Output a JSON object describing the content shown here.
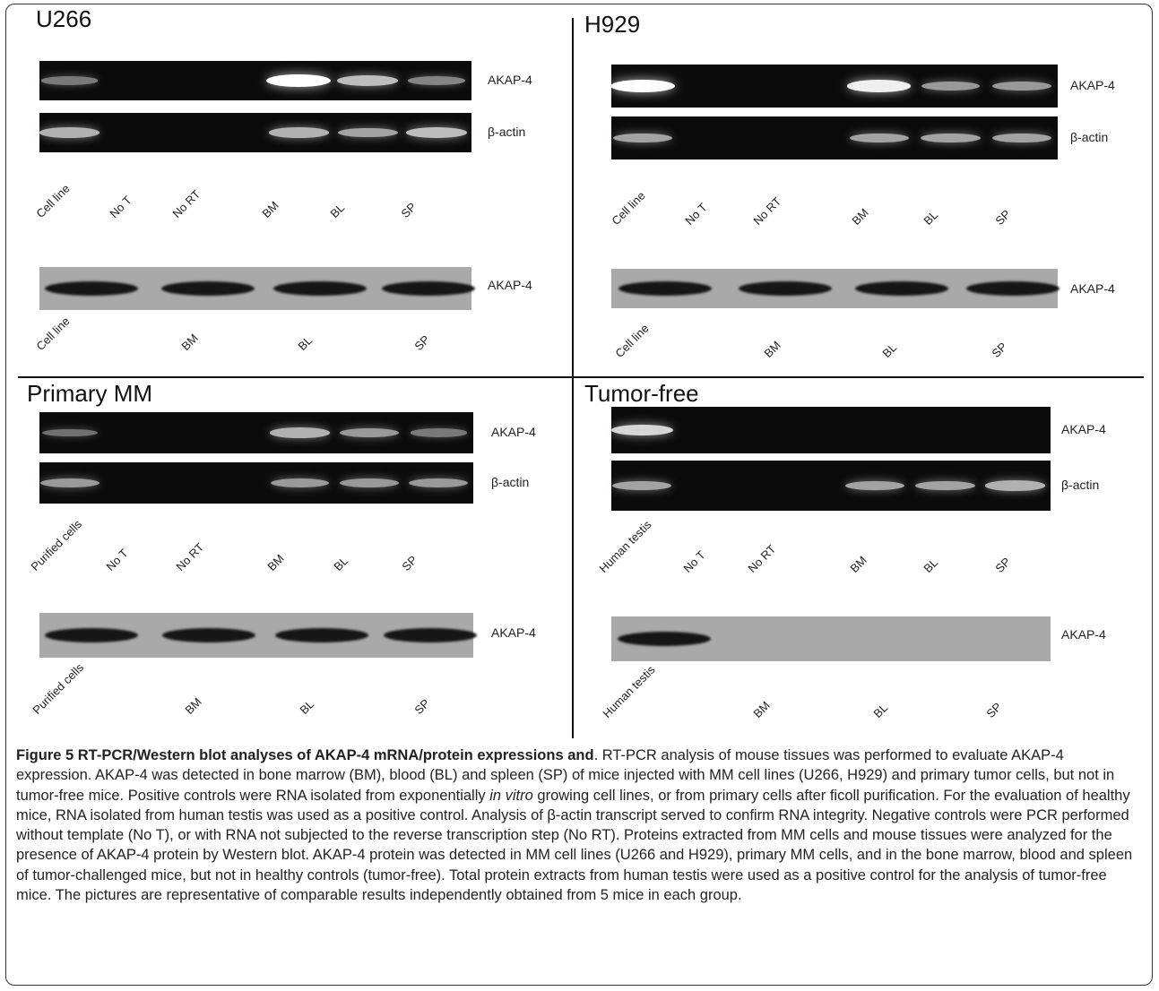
{
  "panels": [
    {
      "title": "U266",
      "gels": [
        {
          "label": "AKAP-4",
          "bands": [
            0.45,
            0,
            0,
            1.0,
            0.75,
            0.5
          ]
        },
        {
          "label": "β-actin",
          "bands": [
            0.7,
            0,
            0,
            0.7,
            0.65,
            0.75
          ]
        }
      ],
      "lanes": [
        "Cell line",
        "No T",
        "No RT",
        "BM",
        "BL",
        "SP"
      ],
      "western": {
        "label": "AKAP-4",
        "bands": [
          1,
          1,
          1,
          1
        ]
      },
      "western_lanes": [
        "Cell line",
        "BM",
        "BL",
        "SP"
      ]
    },
    {
      "title": "H929",
      "gels": [
        {
          "label": "AKAP-4",
          "bands": [
            1.0,
            0,
            0,
            0.95,
            0.6,
            0.6
          ]
        },
        {
          "label": "β-actin",
          "bands": [
            0.65,
            0,
            0,
            0.65,
            0.65,
            0.65
          ]
        }
      ],
      "lanes": [
        "Cell line",
        "No T",
        "No RT",
        "BM",
        "BL",
        "SP"
      ],
      "western": {
        "label": "AKAP-4",
        "bands": [
          1,
          1,
          1,
          1
        ]
      },
      "western_lanes": [
        "Cell line",
        "BM",
        "BL",
        "SP"
      ]
    },
    {
      "title": "Primary MM",
      "gels": [
        {
          "label": "AKAP-4",
          "bands": [
            0.4,
            0,
            0,
            0.7,
            0.6,
            0.45
          ]
        },
        {
          "label": "β-actin",
          "bands": [
            0.6,
            0,
            0,
            0.6,
            0.6,
            0.6
          ]
        }
      ],
      "lanes": [
        "Purified cells",
        "No T",
        "No RT",
        "BM",
        "BL",
        "SP"
      ],
      "western": {
        "label": "AKAP-4",
        "bands": [
          1,
          1,
          1,
          1
        ]
      },
      "western_lanes": [
        "Purified cells",
        "BM",
        "BL",
        "SP"
      ]
    },
    {
      "title": "Tumor-free",
      "gels": [
        {
          "label": "AKAP-4",
          "bands": [
            0.85,
            0,
            0,
            0,
            0,
            0
          ]
        },
        {
          "label": "β-actin",
          "bands": [
            0.65,
            0,
            0,
            0.65,
            0.65,
            0.7
          ]
        }
      ],
      "lanes": [
        "Human testis",
        "No T",
        "No RT",
        "BM",
        "BL",
        "SP"
      ],
      "western": {
        "label": "AKAP-4",
        "bands": [
          1,
          0,
          0,
          0
        ]
      },
      "western_lanes": [
        "Human testis",
        "BM",
        "BL",
        "SP"
      ]
    }
  ],
  "caption": {
    "title": "Figure 5 RT-PCR/Western blot analyses of AKAP-4 mRNA/protein expressions and",
    "text_before_italic": ". RT-PCR analysis of mouse tissues was performed to evaluate AKAP-4 expression. AKAP-4 was detected in bone marrow (BM), blood (BL) and spleen (SP) of mice injected with MM cell lines (U266, H929) and primary tumor cells, but not in tumor-free mice. Positive controls were RNA isolated from exponentially ",
    "italic": "in vitro",
    "text_after_italic": " growing cell lines, or from primary cells after ficoll purification. For the evaluation of healthy mice, RNA isolated from human testis was used as a positive control. Analysis of β-actin transcript served to confirm RNA integrity. Negative controls were PCR performed without template (No T), or with RNA not subjected to the reverse transcription step (No RT). Proteins extracted from MM cells and mouse tissues were analyzed for the presence of AKAP-4 protein by Western blot. AKAP-4 protein was detected in MM cell lines (U266 and H929), primary MM cells, and in the bone marrow, blood and spleen of tumor-challenged mice, but not in healthy controls (tumor-free). Total protein extracts from human testis were used as a positive control for the analysis of tumor-free mice. The pictures are representative of comparable results independently obtained from 5 mice in each group."
  }
}
